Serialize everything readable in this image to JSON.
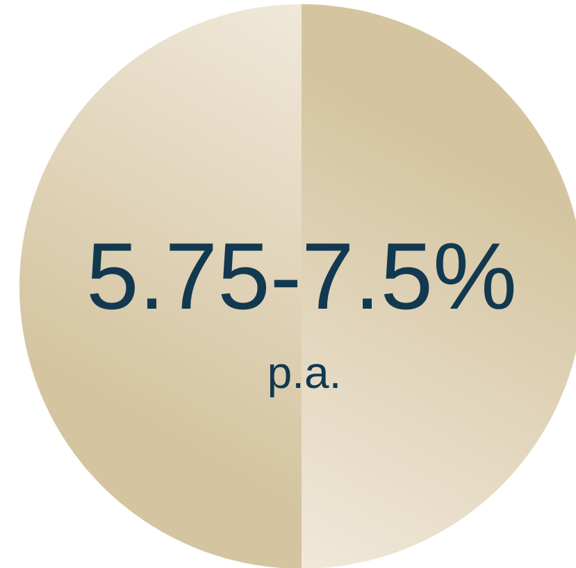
{
  "badge": {
    "rate": "5.75-7.5%",
    "period": "p.a."
  }
}
